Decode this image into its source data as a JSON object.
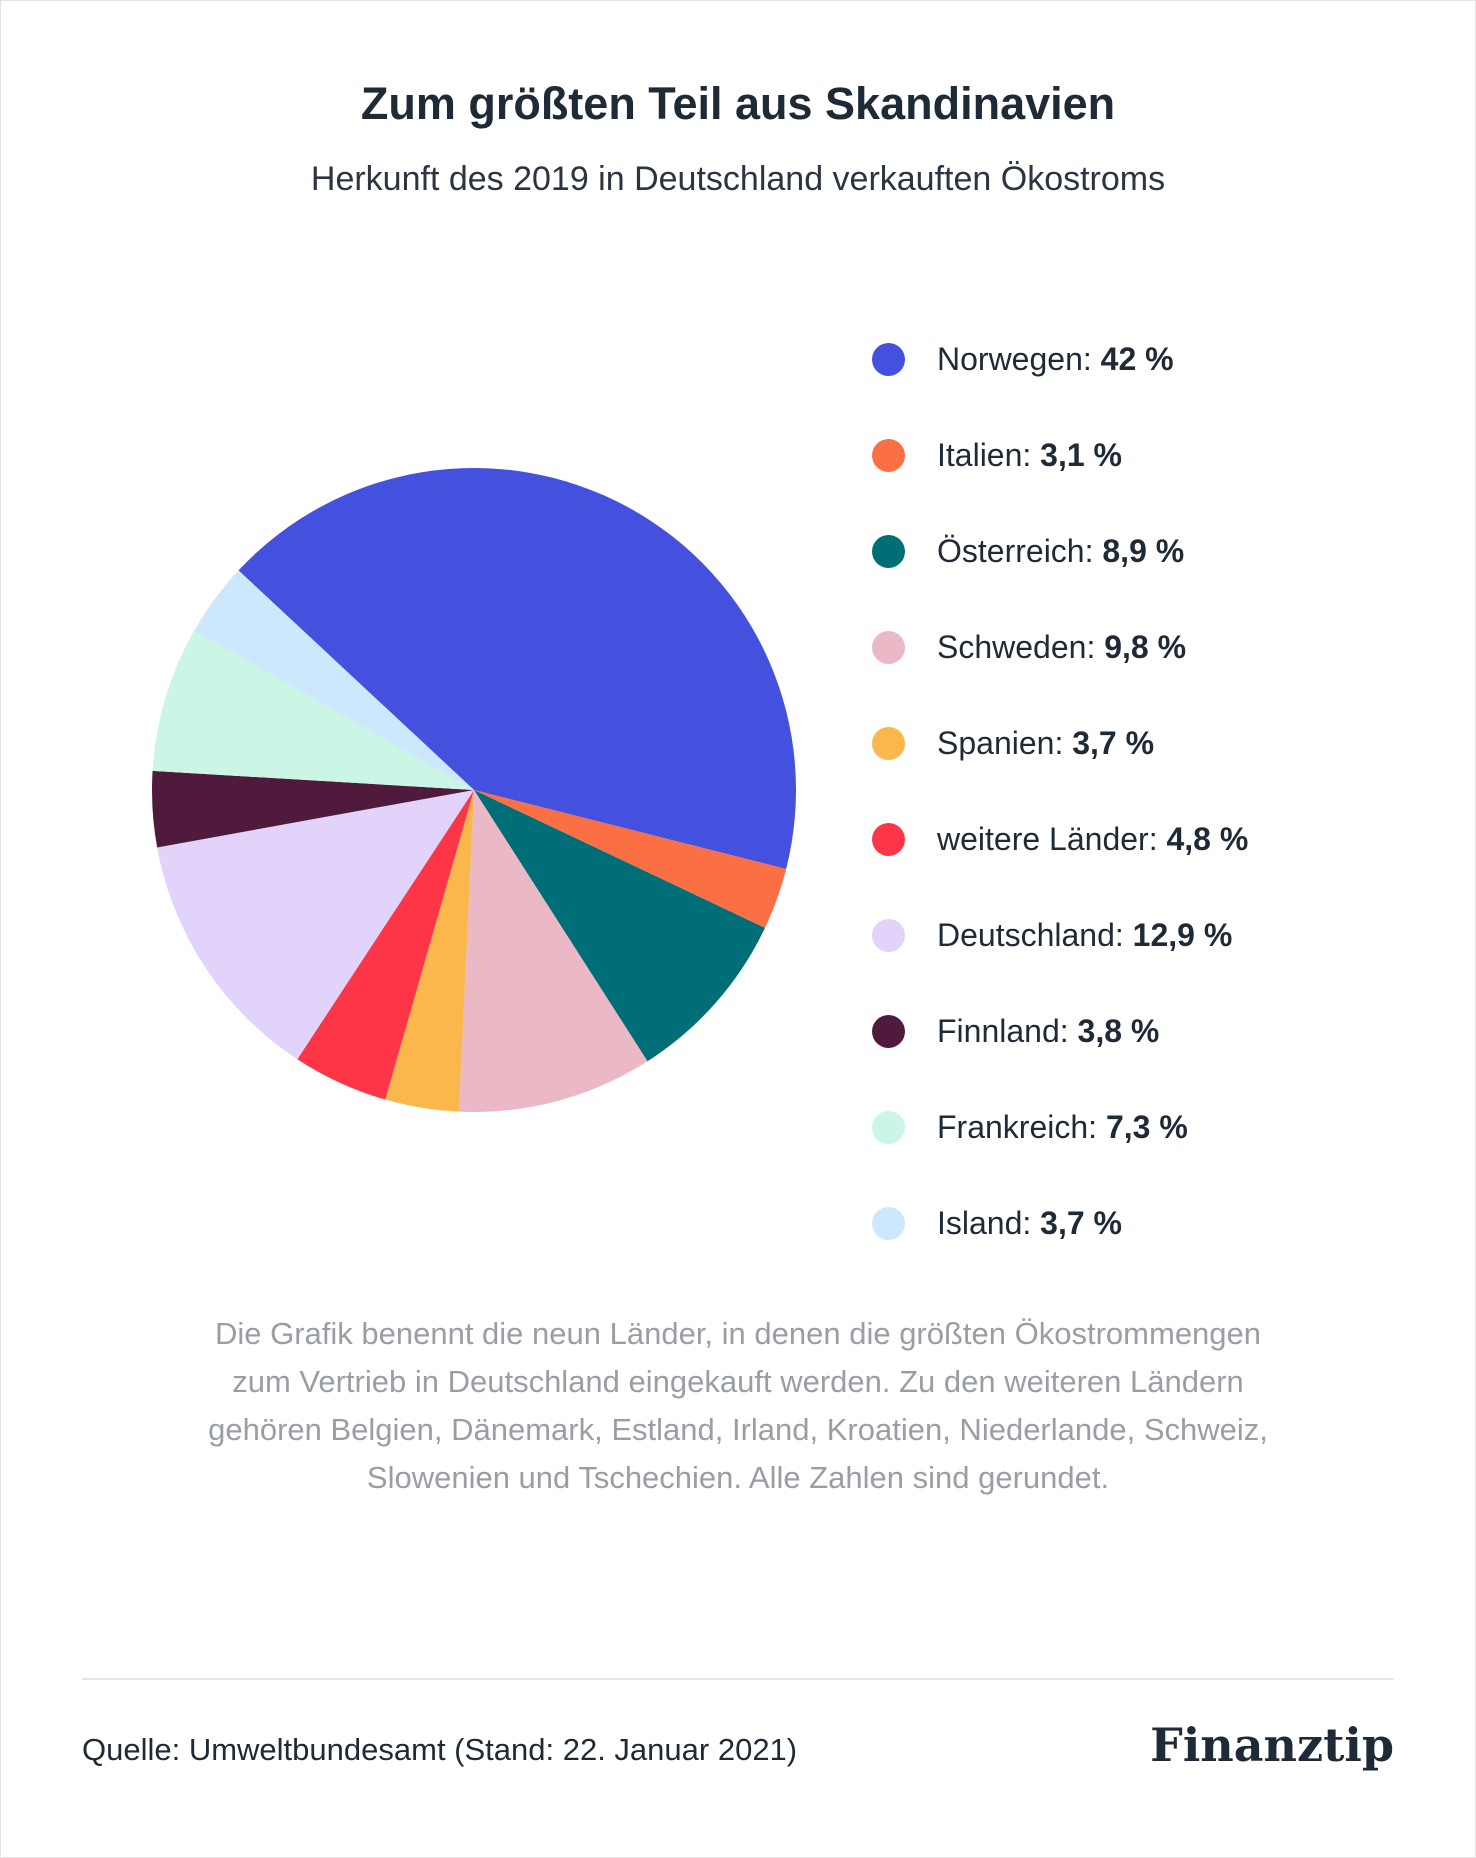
{
  "header": {
    "title": "Zum größten Teil aus Skandinavien",
    "subtitle": "Herkunft des 2019 in Deutschland verkauften Ökostroms"
  },
  "chart_data": {
    "type": "pie",
    "unit": "%",
    "start_angle_deg": 0,
    "direction": "clockwise",
    "series": [
      {
        "slices": [
          {
            "label": "Norwegen",
            "value": 42,
            "display": "42 %",
            "color": "#4450de"
          },
          {
            "label": "Italien",
            "value": 3.1,
            "display": "3,1 %",
            "color": "#fb6f45"
          },
          {
            "label": "Österreich",
            "value": 8.9,
            "display": "8,9 %",
            "color": "#006e77"
          },
          {
            "label": "Schweden",
            "value": 9.8,
            "display": "9,8 %",
            "color": "#ebb8c6"
          },
          {
            "label": "Spanien",
            "value": 3.7,
            "display": "3,7 %",
            "color": "#fab74c"
          },
          {
            "label": "weitere Länder",
            "value": 4.8,
            "display": "4,8 %",
            "color": "#fe3546"
          },
          {
            "label": "Deutschland",
            "value": 12.9,
            "display": "12,9 %",
            "color": "#e2d3fb"
          },
          {
            "label": "Finnland",
            "value": 3.8,
            "display": "3,8 %",
            "color": "#501a3c"
          },
          {
            "label": "Frankreich",
            "value": 7.3,
            "display": "7,3 %",
            "color": "#cbf5e4"
          },
          {
            "label": "Island",
            "value": 3.7,
            "display": "3,7 %",
            "color": "#cde7fd"
          }
        ]
      }
    ],
    "legend_position": "right"
  },
  "note": "Die Grafik benennt die neun Länder, in denen die größten Ökostrommengen zum Vertrieb in Deutschland eingekauft werden. Zu den weiteren Ländern gehören Belgien, Dänemark, Estland, Irland, Kroatien, Niederlande, Schweiz, Slowenien und Tschechien. Alle Zahlen sind gerundet.",
  "footer": {
    "source": "Quelle: Umweltbundesamt (Stand: 22. Januar 2021)",
    "logo": "Finanztip"
  }
}
